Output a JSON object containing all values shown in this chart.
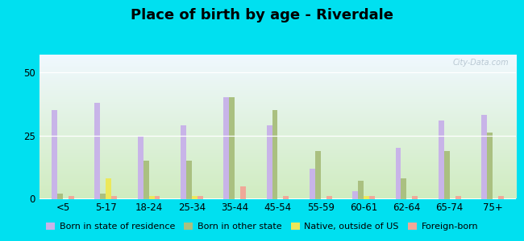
{
  "title": "Place of birth by age - Riverdale",
  "categories": [
    "<5",
    "5-17",
    "18-24",
    "25-34",
    "35-44",
    "45-54",
    "55-59",
    "60-61",
    "62-64",
    "65-74",
    "75+"
  ],
  "series": {
    "Born in state of residence": [
      35,
      38,
      25,
      29,
      40,
      29,
      12,
      3,
      20,
      31,
      33
    ],
    "Born in other state": [
      2,
      2,
      15,
      15,
      40,
      35,
      19,
      7,
      8,
      19,
      26
    ],
    "Native, outside of US": [
      0,
      8,
      1,
      1,
      0,
      0,
      0,
      1,
      0,
      0,
      0
    ],
    "Foreign-born": [
      1,
      1,
      1,
      1,
      5,
      1,
      1,
      1,
      1,
      1,
      1
    ]
  },
  "colors": {
    "Born in state of residence": "#c8b4e8",
    "Born in other state": "#aac080",
    "Native, outside of US": "#ece85a",
    "Foreign-born": "#f0a898"
  },
  "ylim": [
    0,
    57
  ],
  "yticks": [
    0,
    25,
    50
  ],
  "bg_bottom": "#d0ecc0",
  "bg_top": "#e8f4f8",
  "outer_bg": "#00e0f0",
  "bar_width": 0.13,
  "title_fontsize": 13,
  "tick_fontsize": 8.5,
  "legend_fontsize": 8
}
